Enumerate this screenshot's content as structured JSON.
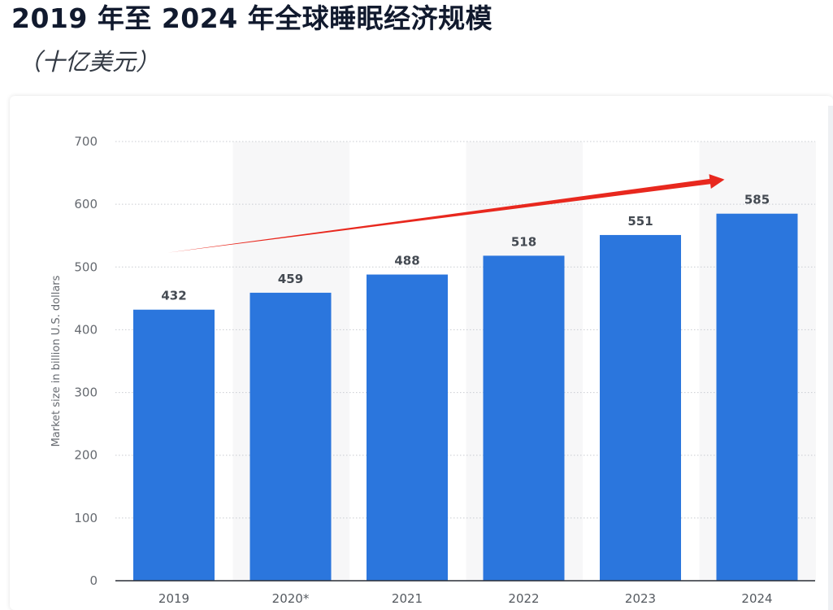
{
  "header": {
    "title": "2019 年至 2024 年全球睡眠经济规模",
    "subtitle": "（十亿美元）"
  },
  "chart_data": {
    "type": "bar",
    "categories": [
      "2019",
      "2020*",
      "2021",
      "2022",
      "2023",
      "2024"
    ],
    "values": [
      432,
      459,
      488,
      518,
      551,
      585
    ],
    "title": "",
    "xlabel": "",
    "ylabel": "Market size in billion U.S. dollars",
    "ylim": [
      0,
      700
    ],
    "yticks": [
      0,
      100,
      200,
      300,
      400,
      500,
      600,
      700
    ],
    "grid": true,
    "bar_color": "#2b76dd",
    "band_color": "#f7f7f8",
    "trend_arrow": {
      "color": "#e8281e",
      "from_category": "2019",
      "to_category": "2024"
    }
  }
}
